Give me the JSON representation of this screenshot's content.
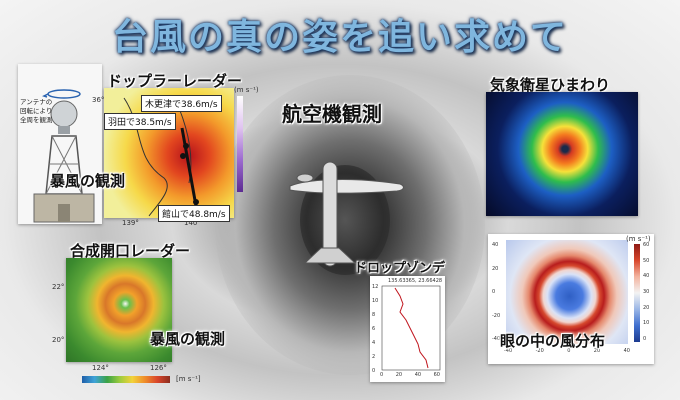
{
  "title": "台風の真の姿を追い求めて",
  "doppler": {
    "heading": "ドップラーレーダー",
    "antenna_note_lines": [
      "アンテナの",
      "回転により",
      "全周を観測"
    ],
    "observation_label": "暴風の観測",
    "callouts": [
      "木更津で38.6m/s",
      "羽田で38.5m/s",
      "館山で48.8m/s"
    ],
    "lon_ticks": [
      "139°",
      "140°"
    ],
    "lat_tick": "36°",
    "unit": "(m s⁻¹)"
  },
  "aircraft": {
    "heading": "航空機観測"
  },
  "himawari": {
    "heading": "気象衛星ひまわり"
  },
  "sar": {
    "heading": "合成開口レーダー",
    "observation_label": "暴風の観測",
    "lat_ticks": [
      "22°",
      "20°"
    ],
    "lon_ticks": [
      "124°",
      "126°"
    ],
    "colorbar_unit": "[m s⁻¹]"
  },
  "dropsonde": {
    "heading": "ドロップゾンデ",
    "plot_title": "135.63365, 23.66428",
    "y_ticks": [
      "12",
      "10",
      "8",
      "6",
      "4",
      "2",
      "0"
    ],
    "x_ticks": [
      "0",
      "20",
      "40",
      "60"
    ]
  },
  "eye": {
    "heading": "眼の中の風分布",
    "unit": "(m s⁻¹)",
    "colorbar_ticks": [
      "60",
      "50",
      "40",
      "30",
      "20",
      "10",
      "0"
    ],
    "x_ticks": [
      "-40",
      "-20",
      "0",
      "20",
      "40"
    ],
    "y_ticks": [
      "40",
      "20",
      "0",
      "-20",
      "-40"
    ]
  },
  "colors": {
    "title_fill": "#7fb6de",
    "title_outline": "#1c3a66"
  }
}
